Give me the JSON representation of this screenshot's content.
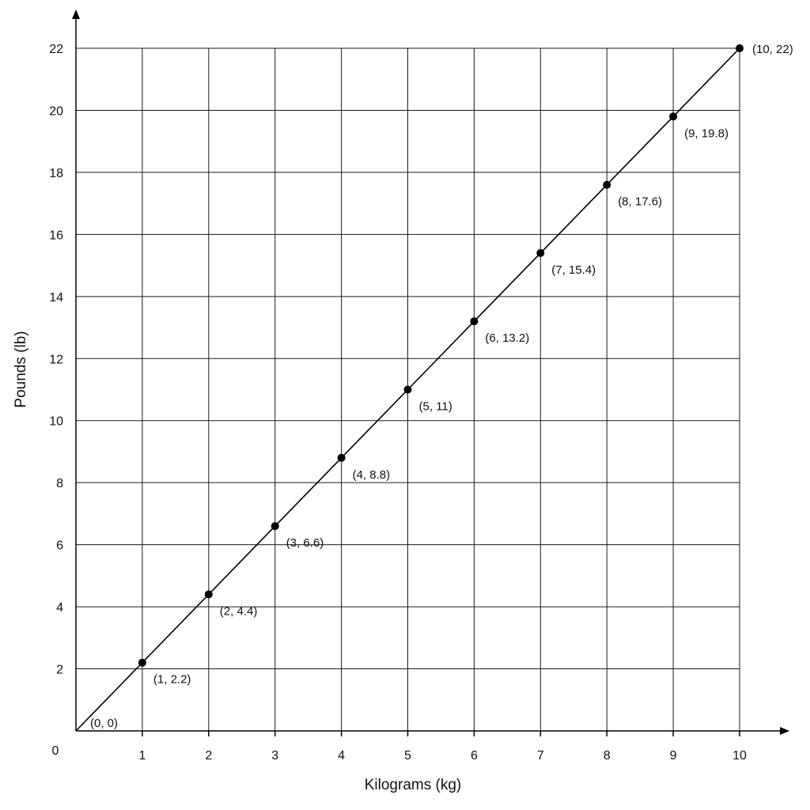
{
  "chart_data": {
    "type": "line",
    "title": "",
    "xlabel": "Kilograms (kg)",
    "ylabel": "Pounds (lb)",
    "xlim": [
      0,
      10
    ],
    "ylim": [
      0,
      22
    ],
    "xticks": [
      1,
      2,
      3,
      4,
      5,
      6,
      7,
      8,
      9,
      10
    ],
    "yticks": [
      2,
      4,
      6,
      8,
      10,
      12,
      14,
      16,
      18,
      20,
      22
    ],
    "origin_label": "0",
    "grid": true,
    "legend": "none",
    "line_color": "#000000",
    "series": [
      {
        "x": [
          0,
          1,
          2,
          3,
          4,
          5,
          6,
          7,
          8,
          9,
          10
        ],
        "y": [
          0,
          2.2,
          4.4,
          6.6,
          8.8,
          11,
          13.2,
          15.4,
          17.6,
          19.8,
          22
        ],
        "point_labels": [
          "(0, 0)",
          "(1, 2.2)",
          "(2, 4.4)",
          "(3, 6.6)",
          "(4, 8.8)",
          "(5, 11)",
          "(6, 13.2)",
          "(7, 15.4)",
          "(8, 17.6)",
          "(9, 19.8)",
          "(10, 22)"
        ]
      }
    ]
  }
}
